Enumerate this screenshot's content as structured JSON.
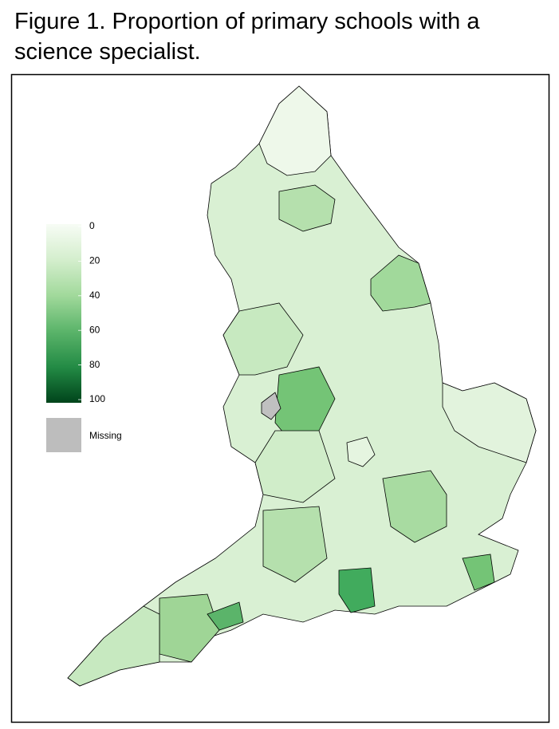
{
  "title": "Figure 1. Proportion of primary schools with a science specialist.",
  "legend": {
    "ticks": [
      0,
      20,
      40,
      60,
      80,
      100
    ],
    "missing_label": "Missing"
  }
}
